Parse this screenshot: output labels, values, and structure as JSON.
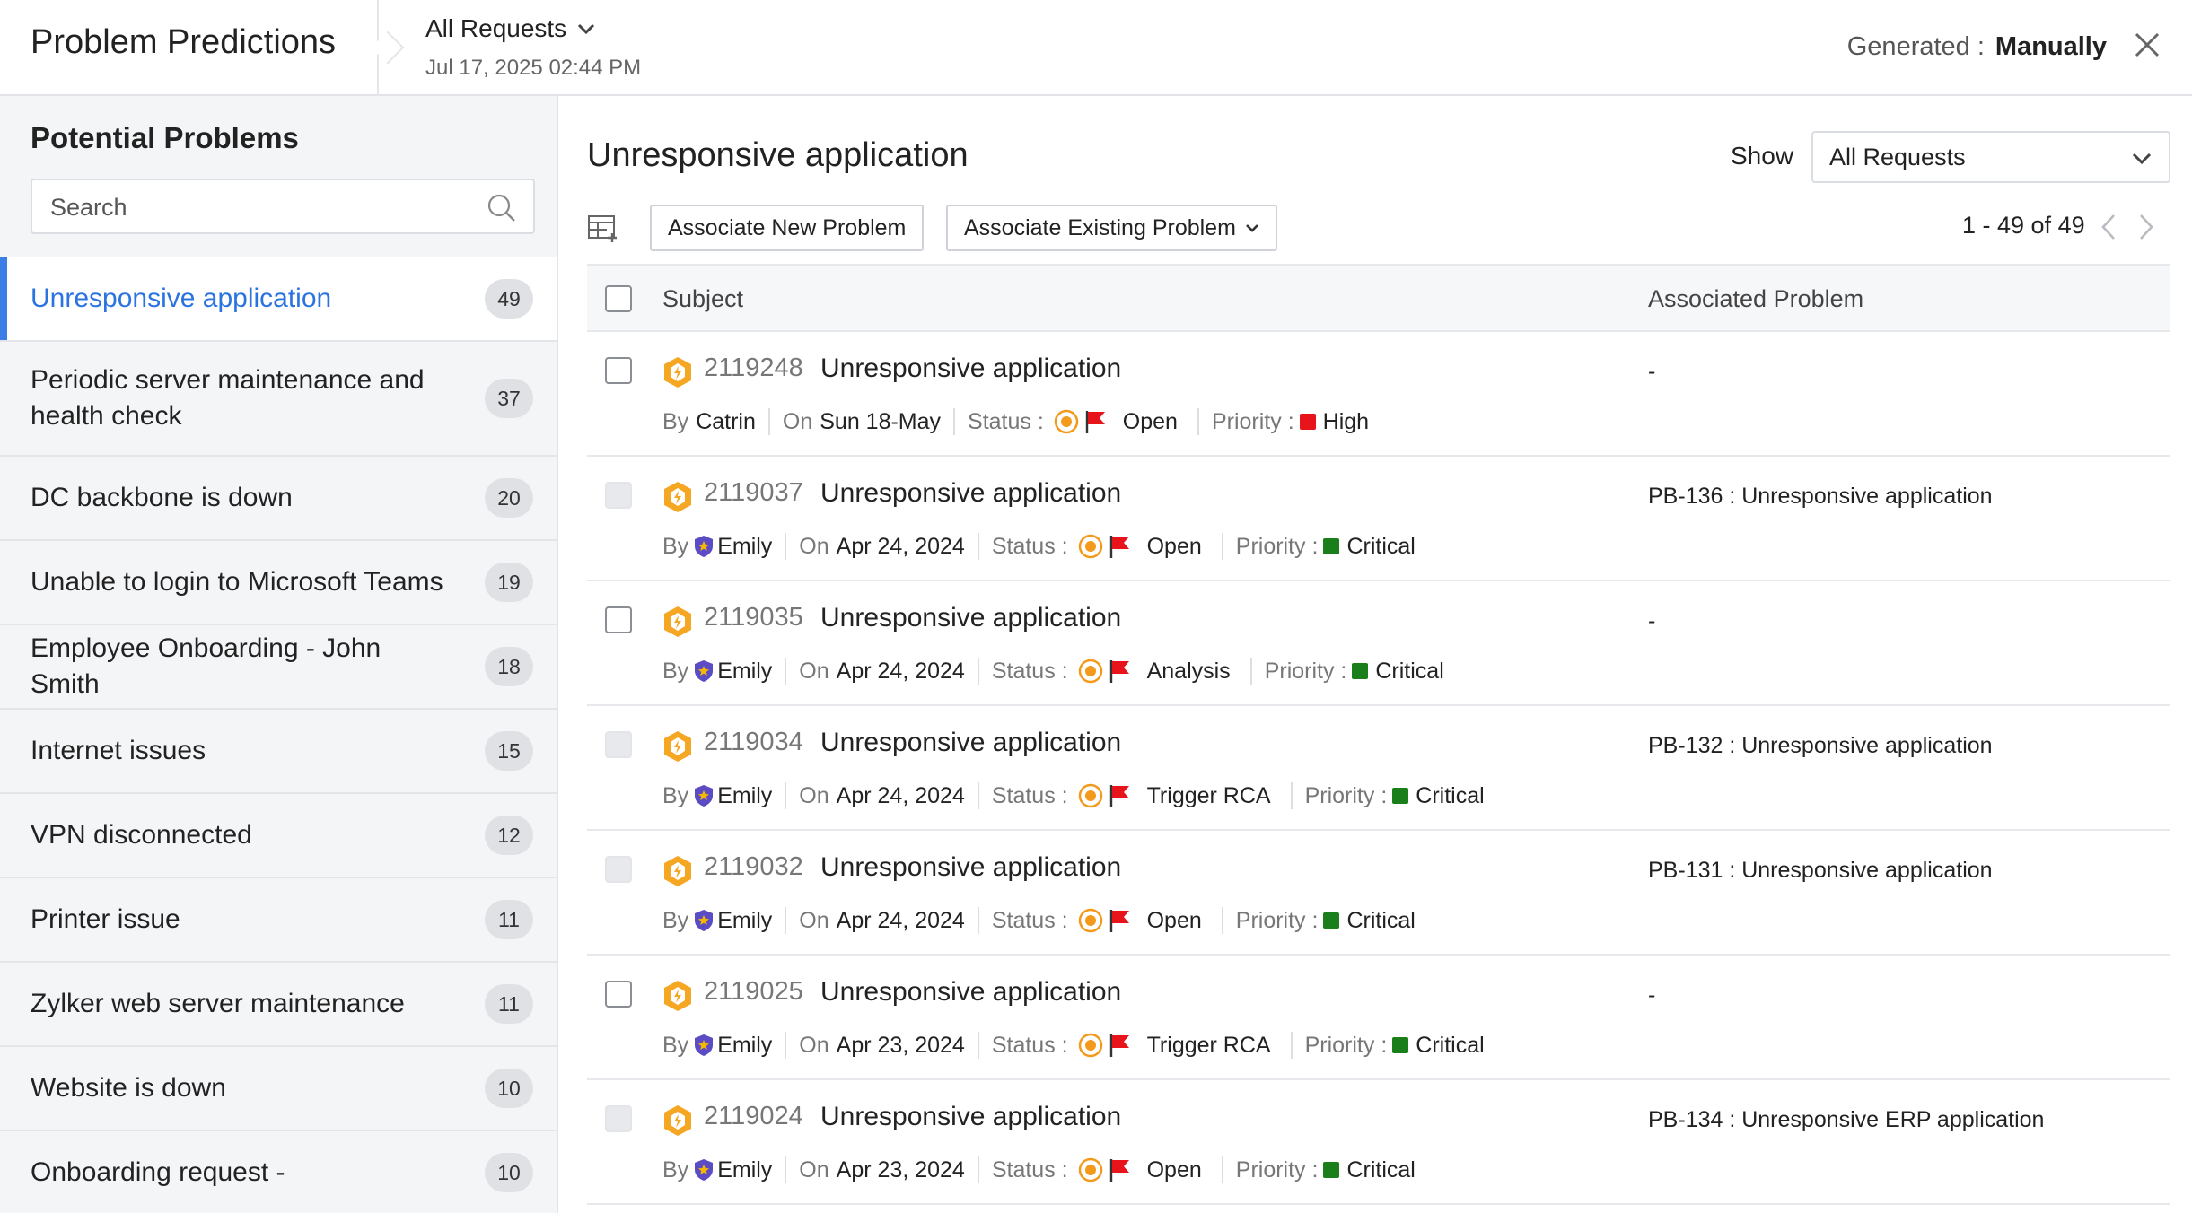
{
  "header": {
    "title": "Problem Predictions",
    "request_filter": "All Requests",
    "timestamp": "Jul 17, 2025 02:44 PM",
    "generated_label": "Generated :",
    "generated_value": "Manually"
  },
  "sidebar": {
    "heading": "Potential Problems",
    "search_placeholder": "Search",
    "items": [
      {
        "label": "Unresponsive application",
        "count": "49",
        "active": true
      },
      {
        "label": "Periodic server maintenance and health check",
        "count": "37"
      },
      {
        "label": "DC backbone is down",
        "count": "20"
      },
      {
        "label": "Unable to login to Microsoft Teams",
        "count": "19"
      },
      {
        "label": "Employee Onboarding - John Smith",
        "count": "18"
      },
      {
        "label": "Internet issues",
        "count": "15"
      },
      {
        "label": "VPN disconnected",
        "count": "12"
      },
      {
        "label": "Printer issue",
        "count": "11"
      },
      {
        "label": "Zylker web server maintenance",
        "count": "11"
      },
      {
        "label": "Website is down",
        "count": "10"
      },
      {
        "label": "Onboarding request -",
        "count": "10"
      }
    ]
  },
  "main": {
    "title": "Unresponsive application",
    "show_label": "Show",
    "show_value": "All Requests",
    "associate_new_label": "Associate New Problem",
    "associate_existing_label": "Associate Existing Problem",
    "pagination": "1 - 49 of 49",
    "columns": {
      "subject": "Subject",
      "associated_problem": "Associated Problem"
    },
    "labels": {
      "by": "By",
      "on": "On",
      "status": "Status :",
      "priority": "Priority :"
    },
    "rows": [
      {
        "id": "2119248",
        "subject": "Unresponsive application",
        "by": "Catrin",
        "on": "Sun 18-May",
        "status": "Open",
        "priority": "High",
        "priority_color": "#e8141c",
        "associated": "-",
        "checkbox_enabled": true,
        "has_avatar": false
      },
      {
        "id": "2119037",
        "subject": "Unresponsive application",
        "by": "Emily",
        "on": "Apr 24, 2024",
        "status": "Open",
        "priority": "Critical",
        "priority_color": "#1a7f1a",
        "associated": "PB-136 : Unresponsive application",
        "checkbox_enabled": false,
        "has_avatar": true
      },
      {
        "id": "2119035",
        "subject": "Unresponsive application",
        "by": "Emily",
        "on": "Apr 24, 2024",
        "status": "Analysis",
        "priority": "Critical",
        "priority_color": "#1a7f1a",
        "associated": "-",
        "checkbox_enabled": true,
        "has_avatar": true
      },
      {
        "id": "2119034",
        "subject": "Unresponsive application",
        "by": "Emily",
        "on": "Apr 24, 2024",
        "status": "Trigger RCA",
        "priority": "Critical",
        "priority_color": "#1a7f1a",
        "associated": "PB-132 : Unresponsive application",
        "checkbox_enabled": false,
        "has_avatar": true
      },
      {
        "id": "2119032",
        "subject": "Unresponsive application",
        "by": "Emily",
        "on": "Apr 24, 2024",
        "status": "Open",
        "priority": "Critical",
        "priority_color": "#1a7f1a",
        "associated": "PB-131 : Unresponsive application",
        "checkbox_enabled": false,
        "has_avatar": true
      },
      {
        "id": "2119025",
        "subject": "Unresponsive application",
        "by": "Emily",
        "on": "Apr 23, 2024",
        "status": "Trigger RCA",
        "priority": "Critical",
        "priority_color": "#1a7f1a",
        "associated": "-",
        "checkbox_enabled": true,
        "has_avatar": true
      },
      {
        "id": "2119024",
        "subject": "Unresponsive application",
        "by": "Emily",
        "on": "Apr 23, 2024",
        "status": "Open",
        "priority": "Critical",
        "priority_color": "#1a7f1a",
        "associated": "PB-134 : Unresponsive ERP application",
        "checkbox_enabled": false,
        "has_avatar": true
      }
    ]
  },
  "colors": {
    "accent": "#2b74e0",
    "request_icon": "#f5a623",
    "status_flag": "#e8141c"
  },
  "icons": [
    "chevron-down-icon",
    "close-icon",
    "search-icon",
    "table-settings-icon",
    "chevron-left-icon",
    "chevron-right-icon",
    "request-icon",
    "user-avatar-icon",
    "status-dot-icon",
    "flag-icon"
  ]
}
